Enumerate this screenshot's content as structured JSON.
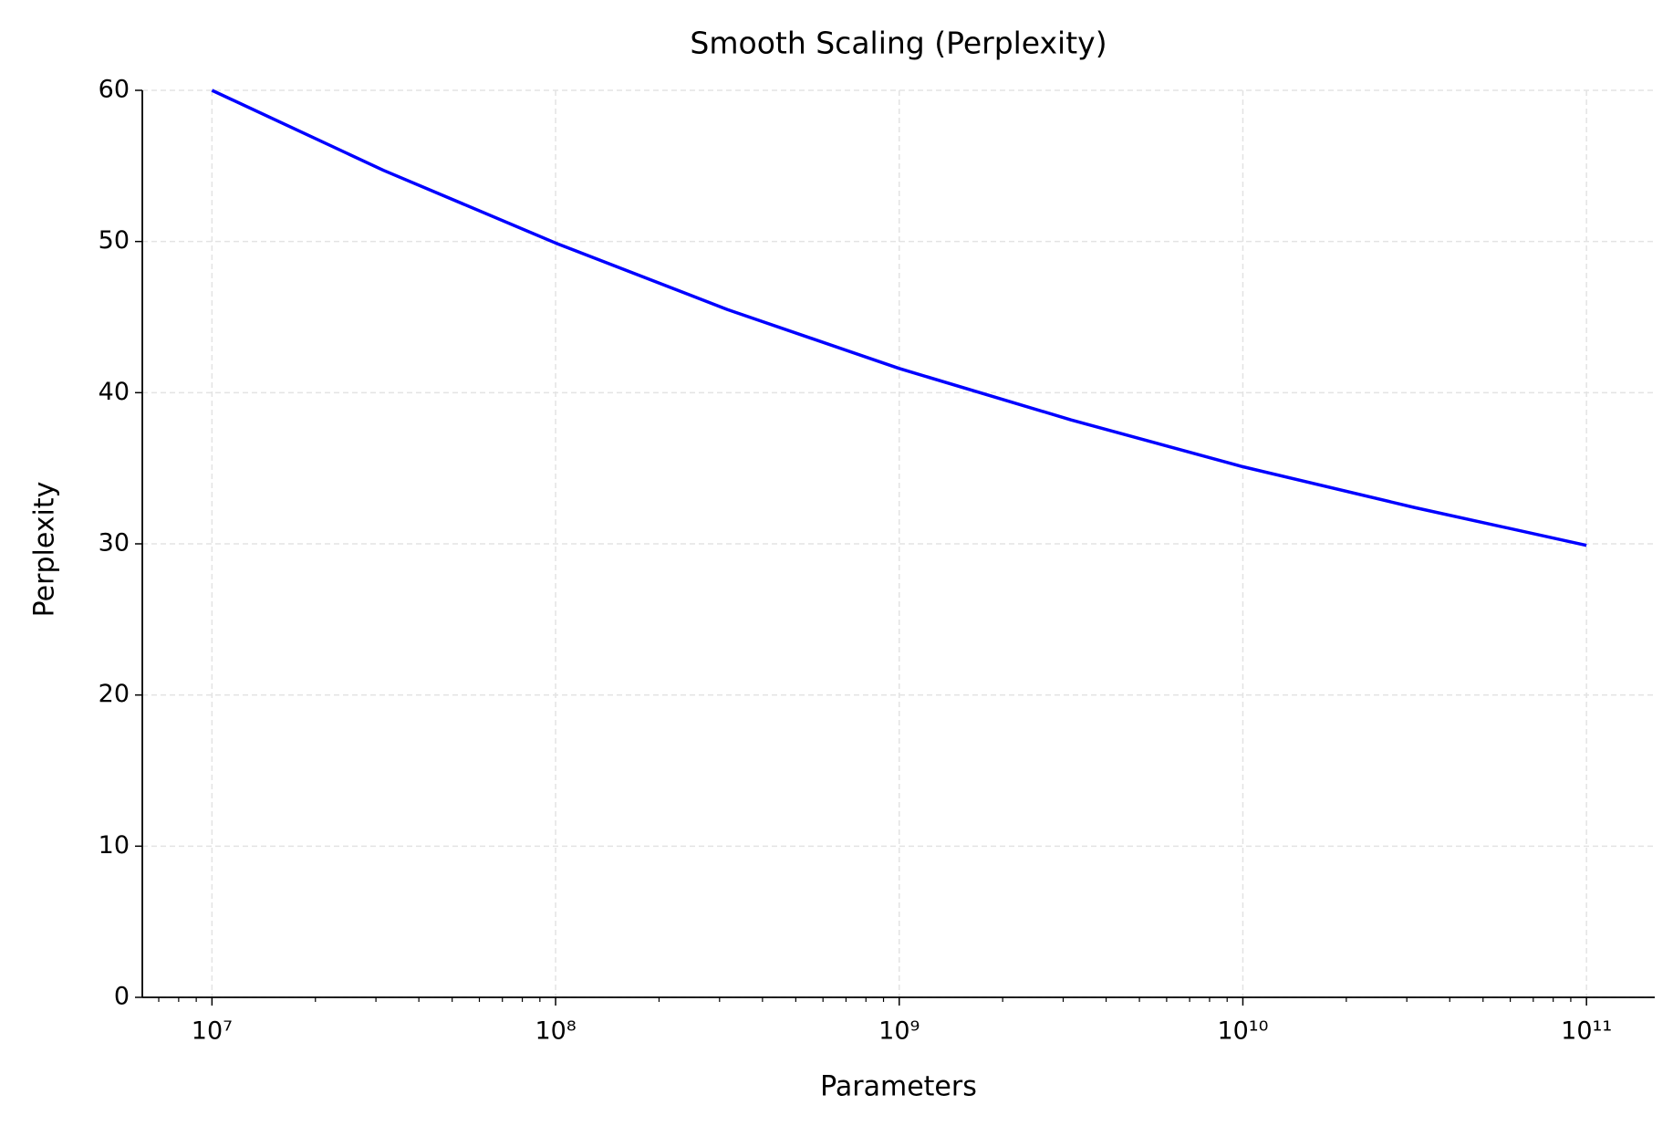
{
  "chart_data": {
    "type": "line",
    "title": "Smooth Scaling (Perplexity)",
    "xlabel": "Parameters",
    "ylabel": "Perplexity",
    "xscale": "log",
    "grid": true,
    "x": [
      10000000,
      31622777,
      100000000,
      316227766,
      1000000000,
      3162277660,
      10000000000,
      31622776602,
      100000000000
    ],
    "series": [
      {
        "color": "#0000ff",
        "values": [
          60,
          54.7,
          49.9,
          45.5,
          41.6,
          38.2,
          35.1,
          32.4,
          29.9
        ]
      }
    ],
    "xlim": [
      6270000,
      158000000000
    ],
    "xticks": [
      {
        "value": 10000000,
        "label": "10⁷"
      },
      {
        "value": 100000000,
        "label": "10⁸"
      },
      {
        "value": 1000000000,
        "label": "10⁹"
      },
      {
        "value": 10000000000,
        "label": "10¹⁰"
      },
      {
        "value": 100000000000,
        "label": "10¹¹"
      }
    ],
    "ylim": [
      0,
      60
    ],
    "yticks": [
      0,
      10,
      20,
      30,
      40,
      50,
      60
    ]
  }
}
